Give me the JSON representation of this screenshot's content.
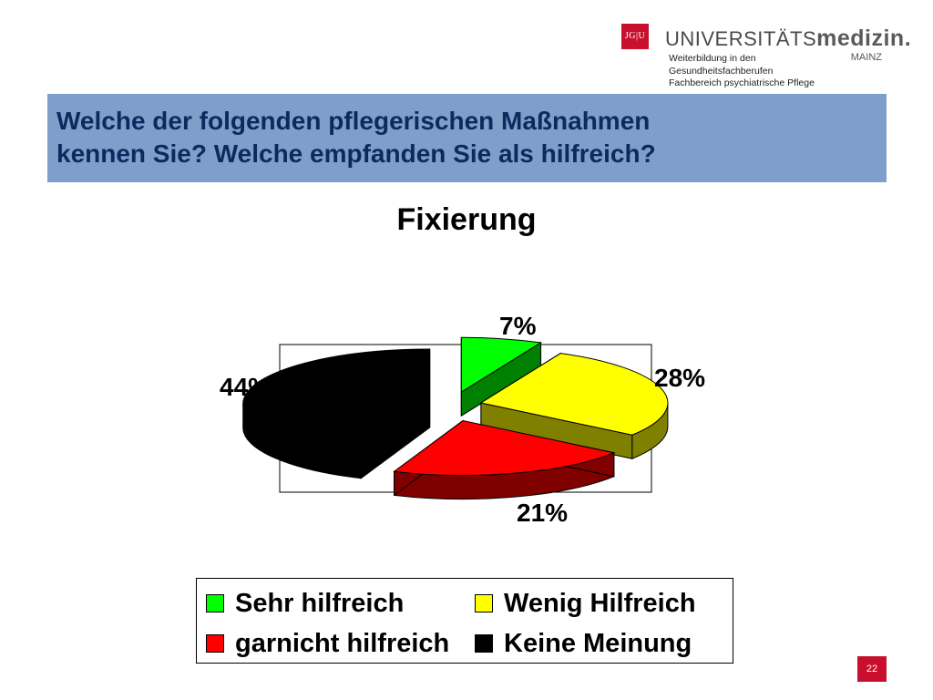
{
  "header": {
    "logo_box_text": "JG|U",
    "logo_word": "UNIVERSITÄTS",
    "logo_word_bold": "medizin.",
    "logo_city": "MAINZ",
    "subtitle_lines": [
      "Weiterbildung in den",
      "Gesundheitsfachberufen",
      "Fachbereich psychiatrische Pflege"
    ]
  },
  "slide": {
    "title_line1": "Welche der folgenden pflegerischen Maßnahmen",
    "title_line2": "kennen Sie? Welche empfanden Sie als hilfreich?",
    "page_number": "22"
  },
  "colors": {
    "title_bar": "#7f9fcb",
    "title_text": "#0d2a5e",
    "brand_red": "#c8102e"
  },
  "chart_data": {
    "type": "pie",
    "title": "Fixierung",
    "slices": [
      {
        "label": "Sehr hilfreich",
        "value": 7,
        "value_label": "7%",
        "color": "#00ff00",
        "side_color": "#008000"
      },
      {
        "label": "Wenig Hilfreich",
        "value": 28,
        "value_label": "28%",
        "color": "#ffff00",
        "side_color": "#808000"
      },
      {
        "label": "garnicht hilfreich",
        "value": 21,
        "value_label": "21%",
        "color": "#ff0000",
        "side_color": "#800000"
      },
      {
        "label": "Keine Meinung",
        "value": 44,
        "value_label": "44%",
        "color": "#000000",
        "side_color": "#000000"
      }
    ],
    "legend": {
      "placement": "bottom",
      "entries": [
        "Sehr hilfreich",
        "Wenig Hilfreich",
        "garnicht hilfreich",
        "Keine Meinung"
      ]
    },
    "exploded": true,
    "three_d": true
  }
}
